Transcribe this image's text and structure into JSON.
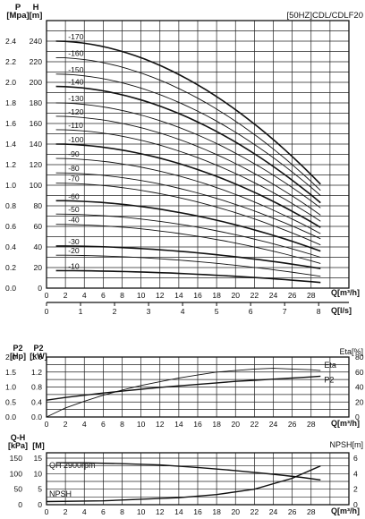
{
  "chart_data": [
    {
      "id": "head",
      "type": "line",
      "title": "[50HZ]CDL/CDLF20",
      "x_unit_label": "Q[m³/h]",
      "x2_unit_label": "Q[l/s]",
      "y_left_label": {
        "top": "P",
        "bottom": "[Mpa]"
      },
      "y_right_label": {
        "top": "H",
        "bottom": "[m]"
      },
      "xlim": [
        0,
        32
      ],
      "ylim": [
        0,
        260
      ],
      "x_ticks": [
        0,
        2,
        4,
        6,
        8,
        10,
        12,
        14,
        16,
        18,
        20,
        22,
        24,
        26,
        28
      ],
      "x2_ticks": [
        0,
        1,
        2,
        3,
        4,
        5,
        6,
        7,
        8
      ],
      "y_ticks_H": [
        0,
        20,
        40,
        60,
        80,
        100,
        120,
        140,
        160,
        180,
        200,
        220,
        240
      ],
      "y_ticks_P": [
        "0.0",
        "0.2",
        "0.4",
        "0.6",
        "0.8",
        "1.0",
        "1.2",
        "1.4",
        "1.6",
        "1.8",
        "2.0",
        "2.2",
        "2.4"
      ],
      "curve_q_start": 1,
      "curve_q_end": 29,
      "series": [
        {
          "name": "-10",
          "H0": 17,
          "Hend": 5.5
        },
        {
          "name": "-20",
          "H0": 32,
          "Hend": 11.5
        },
        {
          "name": "-30",
          "H0": 41,
          "Hend": 19
        },
        {
          "name": "-40",
          "H0": 62,
          "Hend": 24
        },
        {
          "name": "-50",
          "H0": 72,
          "Hend": 30
        },
        {
          "name": "-60",
          "H0": 85,
          "Hend": 36
        },
        {
          "name": "-70",
          "H0": 102,
          "Hend": 42
        },
        {
          "name": "-80",
          "H0": 112,
          "Hend": 48
        },
        {
          "name": "-90",
          "H0": 126,
          "Hend": 53
        },
        {
          "name": "-100",
          "H0": 140,
          "Hend": 59
        },
        {
          "name": "-110",
          "H0": 154,
          "Hend": 65
        },
        {
          "name": "-120",
          "H0": 167,
          "Hend": 71
        },
        {
          "name": "-130",
          "H0": 180,
          "Hend": 78
        },
        {
          "name": "-140",
          "H0": 196,
          "Hend": 83
        },
        {
          "name": "-150",
          "H0": 208,
          "Hend": 90
        },
        {
          "name": "-160",
          "H0": 224,
          "Hend": 95
        },
        {
          "name": "-170",
          "H0": 240,
          "Hend": 101
        }
      ],
      "bold_series": [
        "-10",
        "-30",
        "-60",
        "-100",
        "-140",
        "-170"
      ]
    },
    {
      "id": "power-eta",
      "type": "line",
      "y_left_label": {
        "top": "P2",
        "bottom": "[Hp]"
      },
      "y_left2_label": {
        "top": "P2",
        "bottom": "[kW]"
      },
      "y_right_label": "Eta[%]",
      "x_unit_label": "Q[m³/h]",
      "xlim": [
        0,
        32
      ],
      "ylim_kW": [
        0,
        1.6
      ],
      "y_ticks_Hp": [
        "0.0",
        "0.5",
        "1.0",
        "1.5",
        "2.0"
      ],
      "y_ticks_kW": [
        "0.0",
        "0.4",
        "0.8",
        "1.2",
        "1.6"
      ],
      "y_ticks_eta": [
        "0",
        "20",
        "40",
        "60",
        "80"
      ],
      "x_ticks": [
        0,
        2,
        4,
        6,
        8,
        10,
        12,
        14,
        16,
        18,
        20,
        22,
        24,
        26,
        28
      ],
      "series": [
        {
          "name": "Eta",
          "axis": "eta",
          "x": [
            0,
            2,
            4,
            6,
            8,
            10,
            12,
            14,
            16,
            18,
            20,
            22,
            24,
            26,
            28,
            29
          ],
          "y": [
            0,
            12,
            21,
            29,
            36,
            42,
            47,
            52,
            56,
            60,
            62,
            64,
            65,
            64,
            63,
            62
          ]
        },
        {
          "name": "P2",
          "axis": "kW",
          "x": [
            0,
            2,
            4,
            6,
            8,
            10,
            12,
            14,
            16,
            18,
            20,
            22,
            24,
            26,
            28,
            29
          ],
          "y": [
            0.45,
            0.52,
            0.58,
            0.64,
            0.69,
            0.74,
            0.79,
            0.83,
            0.87,
            0.91,
            0.95,
            0.98,
            1.01,
            1.04,
            1.07,
            1.09
          ]
        }
      ]
    },
    {
      "id": "npsh",
      "type": "line",
      "y_left_label": {
        "top": "Q-H",
        "bottom": "[kPa]"
      },
      "y_left2_label": "[M]",
      "y_right_label": "NPSH[m]",
      "x_unit_label": "Q[m³/h]",
      "xlim": [
        0,
        32
      ],
      "ylim_M": [
        0,
        15
      ],
      "y_ticks_kPa": [
        "0",
        "50",
        "100",
        "150"
      ],
      "y_ticks_M": [
        "0",
        "5",
        "10",
        "15"
      ],
      "y_ticks_npsh": [
        "0",
        "2",
        "4",
        "6"
      ],
      "x_ticks": [
        0,
        2,
        4,
        6,
        8,
        10,
        12,
        14,
        16,
        18,
        20,
        22,
        24,
        26,
        28
      ],
      "annotations": [
        "QH 2900rpm",
        "NPSH"
      ],
      "series": [
        {
          "name": "QH 2900rpm",
          "axis": "M",
          "x": [
            1,
            4,
            8,
            12,
            16,
            20,
            24,
            27,
            29
          ],
          "y": [
            13.5,
            13.5,
            13.2,
            12.8,
            12.0,
            11.0,
            9.8,
            8.8,
            8.0
          ]
        },
        {
          "name": "NPSH",
          "axis": "npsh",
          "x": [
            0,
            6,
            10,
            14,
            18,
            22,
            26,
            29
          ],
          "y": [
            0.4,
            0.5,
            0.7,
            0.9,
            1.3,
            2.0,
            3.4,
            5.0
          ]
        }
      ]
    }
  ]
}
